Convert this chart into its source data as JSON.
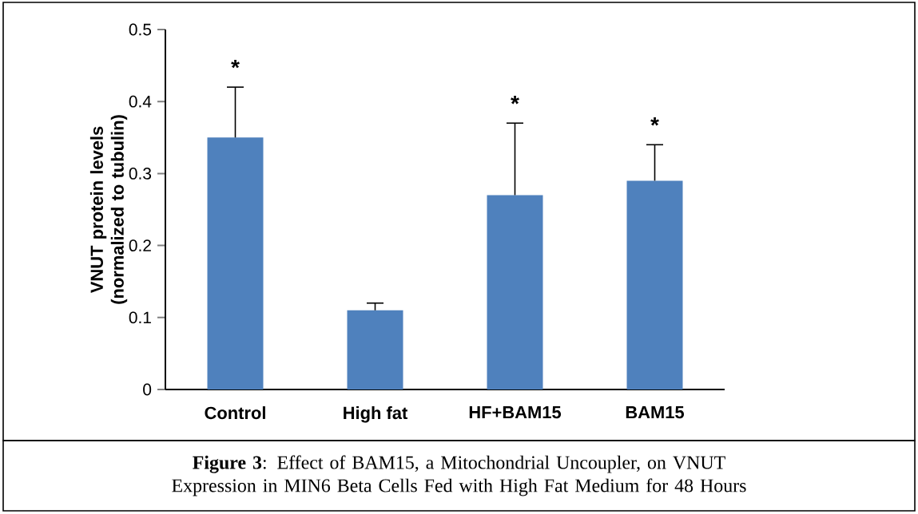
{
  "chart_data": {
    "type": "bar",
    "ylabel": "VNUT protein levels (normalized to tubulin)",
    "categories": [
      "Control",
      "High fat",
      "HF+BAM15",
      "BAM15"
    ],
    "values": [
      0.35,
      0.11,
      0.27,
      0.29
    ],
    "color": "#4f81bd",
    "errors": [
      [
        0.35,
        0.42
      ],
      [
        0.11,
        0.12
      ],
      [
        0.27,
        0.37
      ],
      [
        0.29,
        0.34
      ]
    ],
    "ylim": [
      0,
      0.5
    ],
    "yticks": [
      0,
      0.1,
      0.2,
      0.3,
      0.4,
      0.5
    ],
    "grid": false,
    "annotations": [
      {
        "text": "*",
        "x": "Control",
        "y": 0.42
      },
      {
        "text": "*",
        "x": "HF+BAM15",
        "y": 0.37
      },
      {
        "text": "*",
        "x": "BAM15",
        "y": 0.34
      },
      "**Figure 3**: Effect of BAM15, a Mitochondrial Uncoupler, on VNUT Expression in MIN6 Beta Cells Fed with High Fat Medium for 48 Hours"
    ]
  }
}
